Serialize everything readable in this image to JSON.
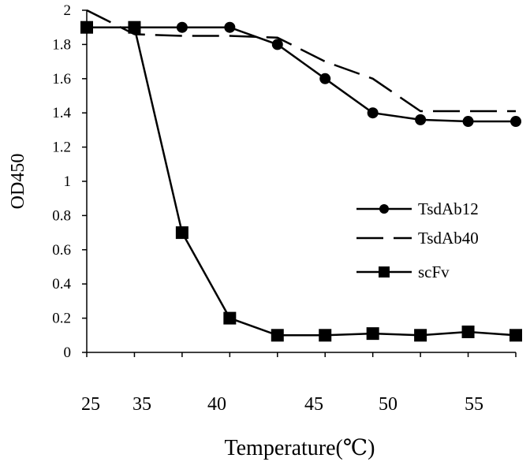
{
  "chart_data": {
    "type": "line",
    "title": "",
    "xlabel": "Temperature(℃)",
    "ylabel": "OD450",
    "ylim": [
      0,
      2
    ],
    "y_ticks": [
      "0",
      "0.2",
      "0.4",
      "0.6",
      "0.8",
      "1",
      "1.2",
      "1.4",
      "1.6",
      "1.8",
      "2"
    ],
    "x_tick_labels": [
      "25",
      "35",
      "40",
      "45",
      "50",
      "55"
    ],
    "grid": false,
    "legend_position": "right",
    "series": [
      {
        "name": "TsdAb12",
        "marker": "circle",
        "dash": "solid",
        "values": [
          1.9,
          1.9,
          1.9,
          1.9,
          1.8,
          1.6,
          1.4,
          1.36,
          1.35,
          1.35
        ]
      },
      {
        "name": "TsdAb40",
        "marker": "none",
        "dash": "long-dash",
        "values": [
          2.0,
          1.86,
          1.85,
          1.85,
          1.84,
          1.7,
          1.6,
          1.41,
          1.41,
          1.41
        ]
      },
      {
        "name": "scFv",
        "marker": "square",
        "dash": "solid",
        "values": [
          1.9,
          1.9,
          0.7,
          0.2,
          0.1,
          0.1,
          0.11,
          0.1,
          0.12,
          0.1
        ]
      }
    ]
  }
}
